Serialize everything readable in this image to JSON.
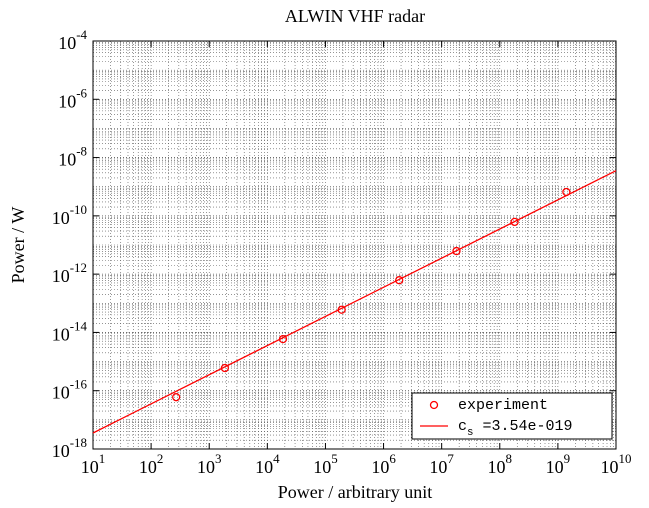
{
  "chart_data": {
    "type": "scatter",
    "title": "ALWIN VHF radar",
    "xlabel": "Power / arbitrary unit",
    "ylabel": "Power / W",
    "xscale": "log",
    "yscale": "log",
    "grid": true,
    "legend": "lower right",
    "xlim": [
      10,
      10000000000
    ],
    "ylim": [
      1e-18,
      0.0001
    ],
    "xticks": [
      {
        "value": 10,
        "label": "10^1"
      },
      {
        "value": 100,
        "label": "10^2"
      },
      {
        "value": 1000,
        "label": "10^3"
      },
      {
        "value": 10000,
        "label": "10^4"
      },
      {
        "value": 100000,
        "label": "10^5"
      },
      {
        "value": 1000000,
        "label": "10^6"
      },
      {
        "value": 10000000,
        "label": "10^7"
      },
      {
        "value": 100000000,
        "label": "10^8"
      },
      {
        "value": 1000000000,
        "label": "10^9"
      },
      {
        "value": 10000000000,
        "label": "10^10"
      }
    ],
    "yticks": [
      {
        "value": 1e-18,
        "label": "10^-18"
      },
      {
        "value": 1e-16,
        "label": "10^-16"
      },
      {
        "value": 1e-14,
        "label": "10^-14"
      },
      {
        "value": 1e-12,
        "label": "10^-12"
      },
      {
        "value": 1e-10,
        "label": "10^-10"
      },
      {
        "value": 1e-08,
        "label": "10^-8"
      },
      {
        "value": 1e-06,
        "label": "10^-6"
      },
      {
        "value": 0.0001,
        "label": "10^-4"
      }
    ],
    "series": [
      {
        "name": "experiment",
        "kind": "marker",
        "color": "#ff0000",
        "x": [
          270,
          1860,
          18600,
          190000,
          1860000,
          18000000,
          180000000,
          1400000000
        ],
        "values": [
          6e-17,
          6e-16,
          5.9e-15,
          6e-14,
          6.2e-13,
          6.2e-12,
          6.2e-11,
          6.6e-10
        ]
      },
      {
        "name": "c_s =3.54e-019",
        "kind": "line",
        "color": "#ff0000",
        "x": [
          10,
          10000000000
        ],
        "values": [
          3.54e-18,
          3.54e-09
        ]
      }
    ]
  }
}
